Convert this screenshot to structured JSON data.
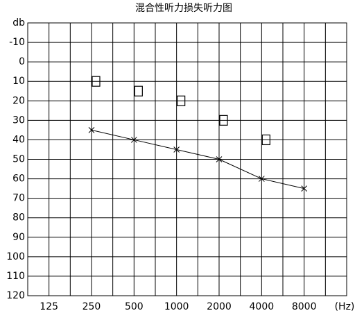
{
  "chart_data": {
    "type": "line",
    "title": "混合性听力损失听力图",
    "x_label": "(Hz)",
    "xscale": "log",
    "xlim": [
      88.4,
      16000
    ],
    "xticks": [
      125,
      250,
      500,
      1000,
      2000,
      4000,
      8000
    ],
    "ylim": [
      -20,
      120
    ],
    "yinverted": true,
    "yticks": [
      {
        "value": -20,
        "label": "db"
      },
      -10,
      0,
      10,
      20,
      30,
      40,
      50,
      60,
      70,
      80,
      90,
      100,
      110,
      120
    ],
    "grid": true,
    "series": [
      {
        "marker": "square",
        "color": "#000000",
        "line": false,
        "x": [
          250,
          500,
          1000,
          2000,
          4000
        ],
        "values": [
          10,
          15,
          20,
          30,
          40
        ]
      },
      {
        "marker": "x",
        "color": "#000000",
        "line": true,
        "x": [
          250,
          500,
          1000,
          2000,
          4000,
          8000
        ],
        "values": [
          35,
          40,
          45,
          50,
          60,
          65
        ]
      }
    ]
  }
}
